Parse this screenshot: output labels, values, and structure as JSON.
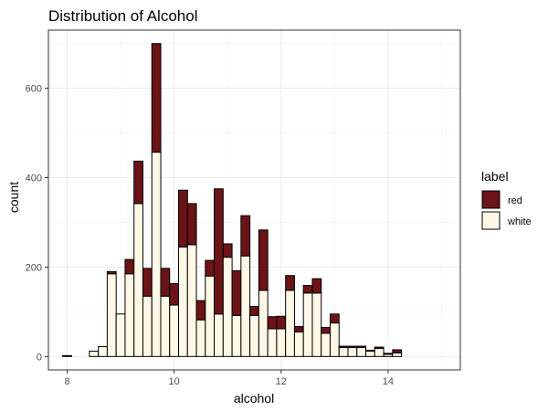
{
  "chart_data": {
    "type": "bar",
    "stacked": true,
    "title": "Distribution of Alcohol",
    "xlabel": "alcohol",
    "ylabel": "count",
    "xlim": [
      7.65,
      15.35
    ],
    "ylim": [
      -30,
      730
    ],
    "x_ticks": [
      8,
      10,
      12,
      14
    ],
    "y_ticks": [
      0,
      200,
      400,
      600
    ],
    "grid": true,
    "bin_width": 0.167,
    "legend": {
      "title": "label",
      "position": "right"
    },
    "x": [
      8.0,
      8.167,
      8.333,
      8.5,
      8.667,
      8.833,
      9.0,
      9.167,
      9.333,
      9.5,
      9.667,
      9.833,
      10.0,
      10.167,
      10.333,
      10.5,
      10.667,
      10.833,
      11.0,
      11.167,
      11.333,
      11.5,
      11.667,
      11.833,
      12.0,
      12.167,
      12.333,
      12.5,
      12.667,
      12.833,
      13.0,
      13.167,
      13.333,
      13.5,
      13.667,
      13.833,
      14.0,
      14.167,
      14.333,
      14.5,
      14.667,
      14.833,
      15.0
    ],
    "series": [
      {
        "name": "white",
        "color": "#FFF8E7",
        "values": [
          2,
          0,
          0,
          12,
          22,
          185,
          95,
          185,
          342,
          135,
          457,
          135,
          115,
          245,
          250,
          82,
          180,
          95,
          222,
          92,
          225,
          92,
          148,
          62,
          62,
          148,
          55,
          142,
          142,
          52,
          75,
          20,
          20,
          20,
          12,
          18,
          5,
          8,
          0,
          0,
          0,
          0,
          0
        ]
      },
      {
        "name": "red",
        "color": "#6B1316",
        "values": [
          0,
          0,
          0,
          0,
          0,
          5,
          0,
          32,
          95,
          62,
          243,
          62,
          48,
          127,
          92,
          43,
          35,
          280,
          30,
          100,
          90,
          20,
          135,
          27,
          28,
          33,
          12,
          17,
          32,
          13,
          20,
          3,
          3,
          3,
          2,
          3,
          2,
          7,
          0,
          0,
          0,
          0,
          0
        ]
      }
    ]
  }
}
